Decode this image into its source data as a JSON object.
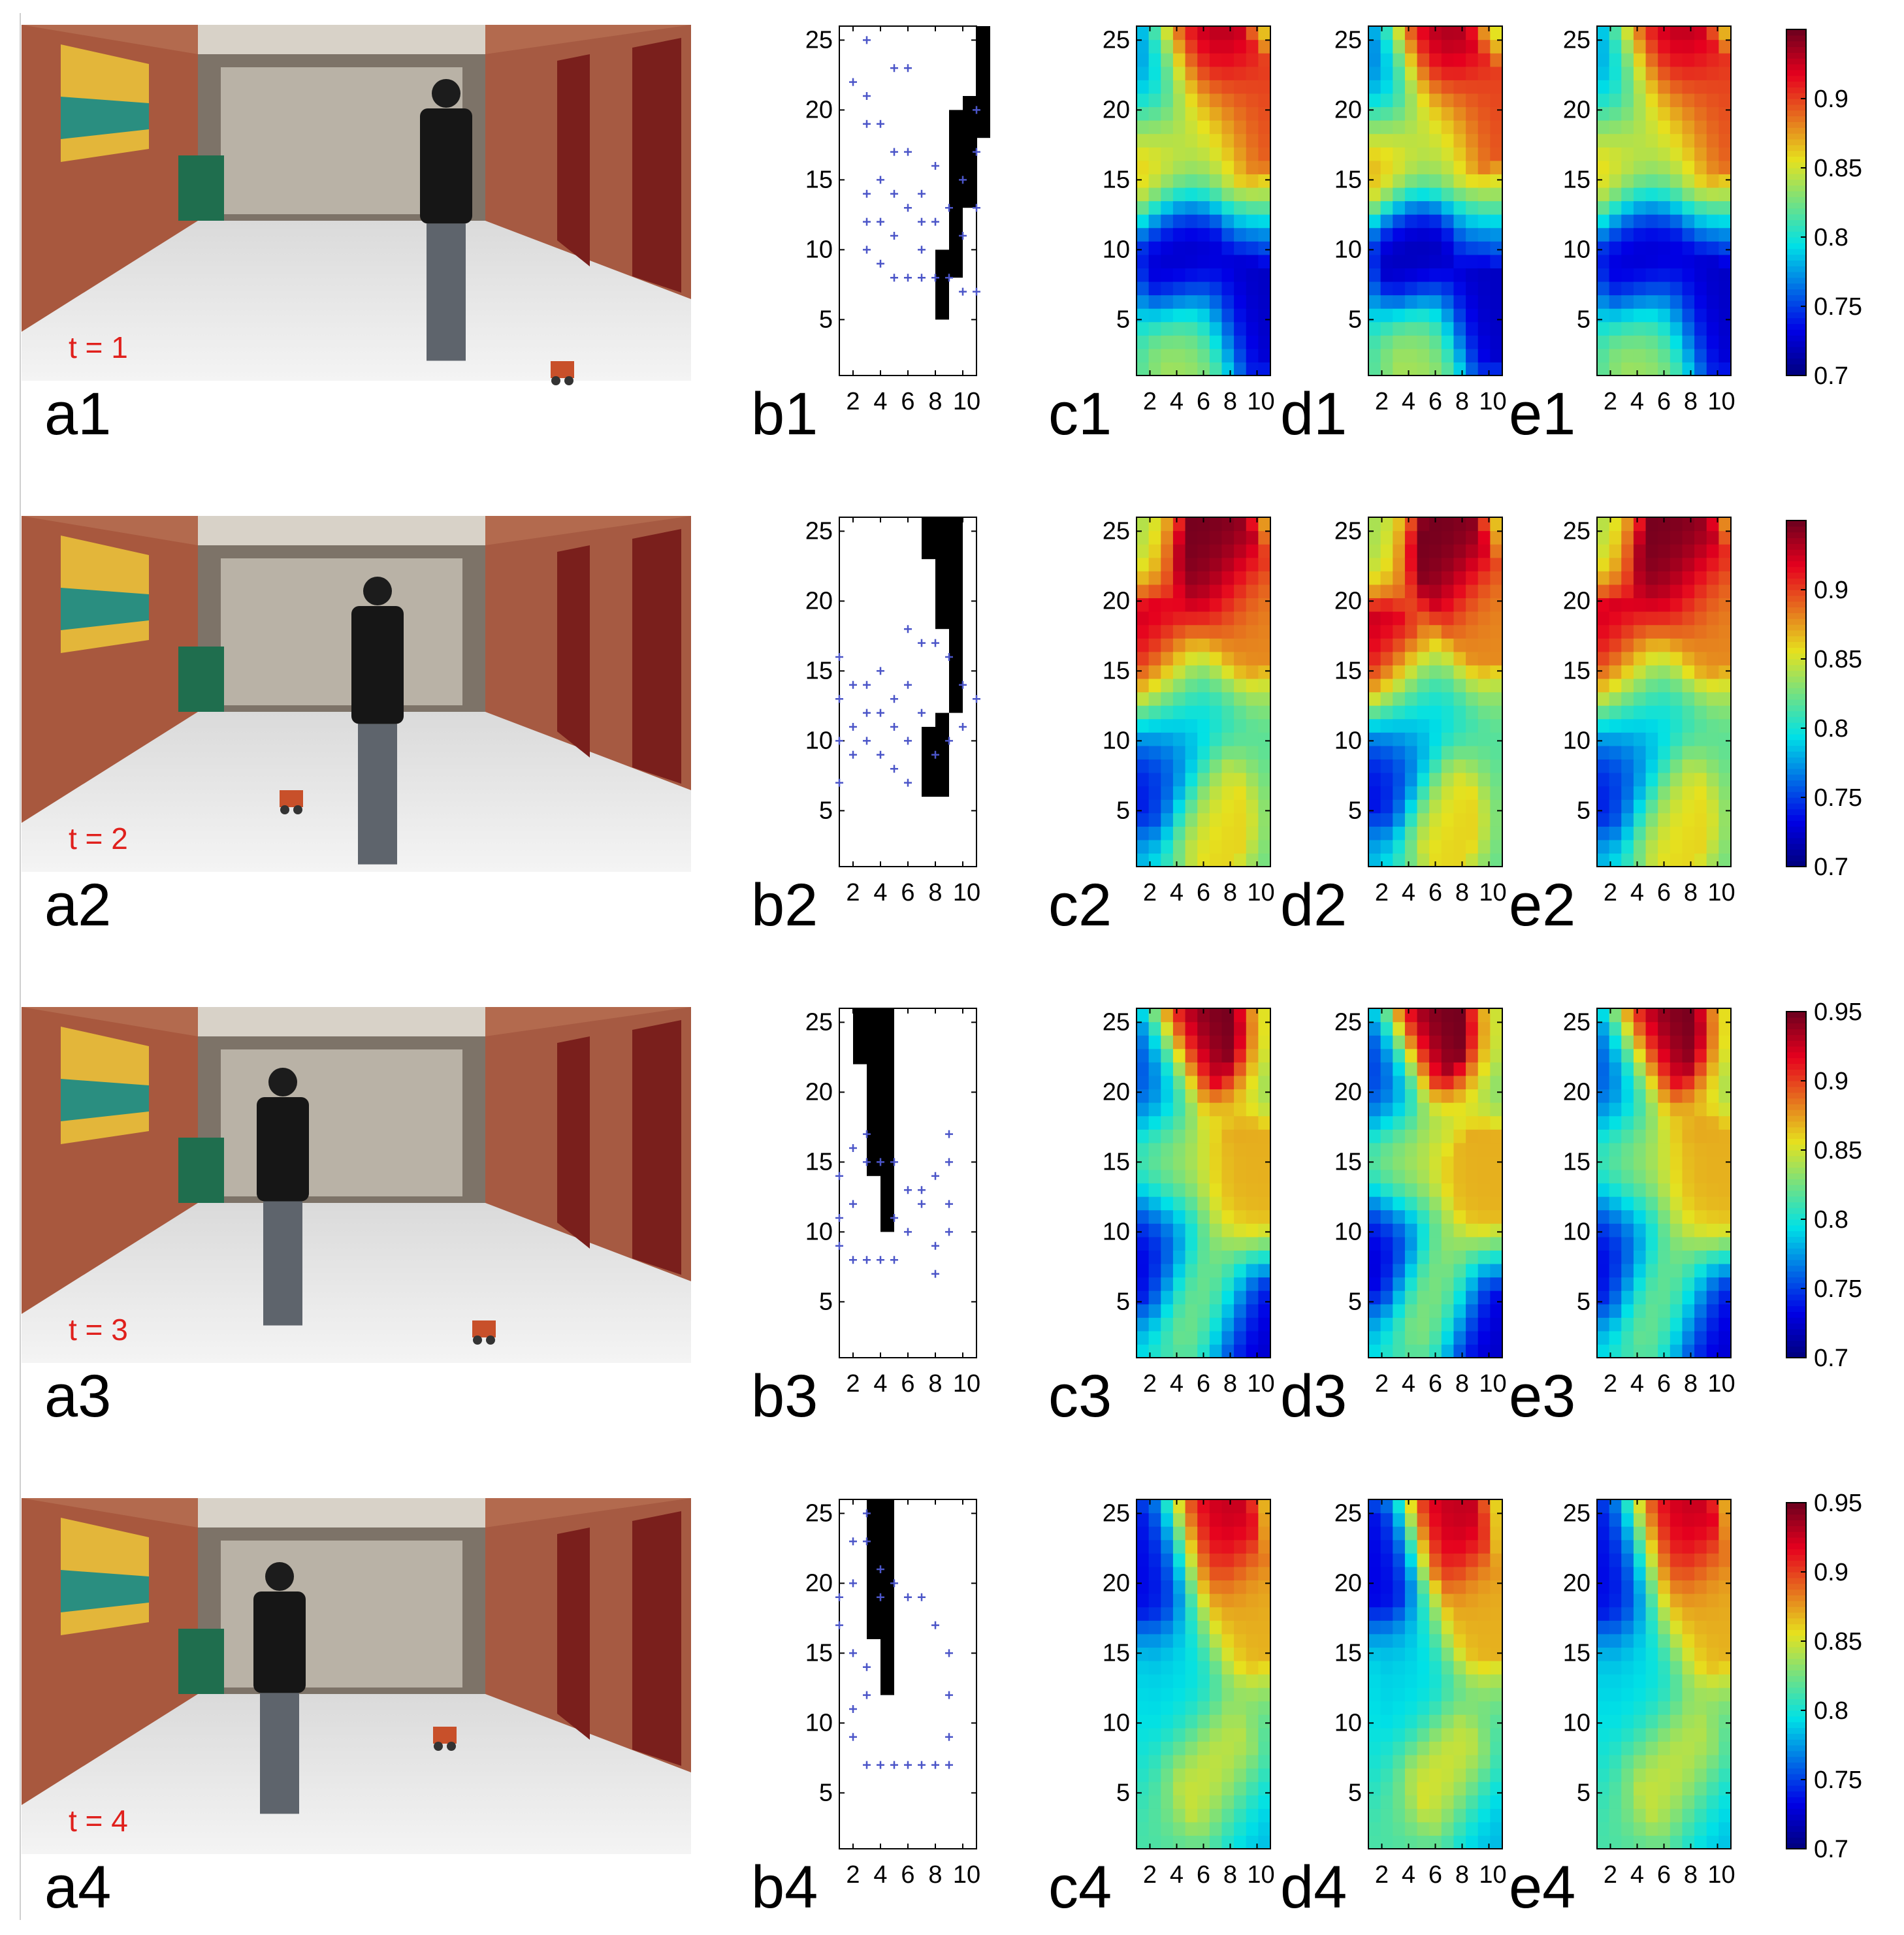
{
  "figure": {
    "rows": [
      {
        "row": 1,
        "photo_label": "a1",
        "time_label": "t = 1",
        "map_label": "b1",
        "heatmap_labels": [
          "c1",
          "d1",
          "e1"
        ],
        "colorbar_ticks": [
          "0.9",
          "0.85",
          "0.8",
          "0.75",
          "0.7"
        ]
      },
      {
        "row": 2,
        "photo_label": "a2",
        "time_label": "t = 2",
        "map_label": "b2",
        "heatmap_labels": [
          "c2",
          "d2",
          "e2"
        ],
        "colorbar_ticks": [
          "0.9",
          "0.85",
          "0.8",
          "0.75",
          "0.7"
        ]
      },
      {
        "row": 3,
        "photo_label": "a3",
        "time_label": "t = 3",
        "map_label": "b3",
        "heatmap_labels": [
          "c3",
          "d3",
          "e3"
        ],
        "colorbar_ticks": [
          "0.95",
          "0.9",
          "0.85",
          "0.8",
          "0.75",
          "0.7"
        ]
      },
      {
        "row": 4,
        "photo_label": "a4",
        "time_label": "t = 4",
        "map_label": "b4",
        "heatmap_labels": [
          "c4",
          "d4",
          "e4"
        ],
        "colorbar_ticks": [
          "0.95",
          "0.9",
          "0.85",
          "0.8",
          "0.75",
          "0.7"
        ]
      }
    ],
    "y_ticks": [
      "25",
      "20",
      "15",
      "10",
      "5"
    ],
    "x_ticks": [
      "2",
      "4",
      "6",
      "8",
      "10"
    ],
    "colors": {
      "label_text": "#000000",
      "time_text": "#e0201c",
      "points": "#4b55c8",
      "occupied": "#000000",
      "jet_low": "#2a2a8c",
      "jet_high": "#c0101a"
    },
    "icons": {
      "photo": "hallway-photo",
      "person": "person-silhouette",
      "robot": "robot-icon",
      "marker": "plus-marker"
    }
  },
  "chart_data": [
    {
      "type": "heatmap",
      "panel": "c1-e1",
      "xlim": [
        1,
        11
      ],
      "ylim": [
        1,
        26
      ],
      "colorbar": {
        "min": 0.7,
        "max": 0.95,
        "ticks": [
          0.7,
          0.75,
          0.8,
          0.85,
          0.9
        ]
      },
      "hotspots": [
        {
          "x": 6,
          "y": 25,
          "value": 0.94
        },
        {
          "x": 10,
          "y": 20,
          "value": 0.9
        },
        {
          "x": 1.5,
          "y": 17,
          "value": 0.89
        },
        {
          "x": 4,
          "y": 10,
          "value": 0.71
        },
        {
          "x": 10,
          "y": 5,
          "value": 0.72
        },
        {
          "x": 1.5,
          "y": 22,
          "value": 0.75
        },
        {
          "x": 5,
          "y": 2,
          "value": 0.84
        },
        {
          "x": 6,
          "y": 18,
          "value": 0.84
        }
      ]
    },
    {
      "type": "heatmap",
      "panel": "c2-e2",
      "xlim": [
        1,
        11
      ],
      "ylim": [
        1,
        26
      ],
      "colorbar": {
        "min": 0.7,
        "max": 0.95,
        "ticks": [
          0.7,
          0.75,
          0.8,
          0.85,
          0.9
        ]
      },
      "hotspots": [
        {
          "x": 7,
          "y": 24,
          "value": 0.95
        },
        {
          "x": 10,
          "y": 19,
          "value": 0.88
        },
        {
          "x": 1.5,
          "y": 16,
          "value": 0.93
        },
        {
          "x": 2,
          "y": 8,
          "value": 0.73
        },
        {
          "x": 7,
          "y": 4,
          "value": 0.86
        },
        {
          "x": 4,
          "y": 12,
          "value": 0.79
        }
      ]
    },
    {
      "type": "heatmap",
      "panel": "c3-e3",
      "xlim": [
        1,
        11
      ],
      "ylim": [
        1,
        26
      ],
      "colorbar": {
        "min": 0.7,
        "max": 0.95,
        "ticks": [
          0.7,
          0.75,
          0.8,
          0.85,
          0.9,
          0.95
        ]
      },
      "hotspots": [
        {
          "x": 6,
          "y": 25,
          "value": 0.95
        },
        {
          "x": 3,
          "y": 15,
          "value": 0.85
        },
        {
          "x": 10,
          "y": 14,
          "value": 0.87
        },
        {
          "x": 1.5,
          "y": 9,
          "value": 0.72
        },
        {
          "x": 10,
          "y": 2,
          "value": 0.72
        },
        {
          "x": 1.5,
          "y": 21,
          "value": 0.74
        },
        {
          "x": 6,
          "y": 5,
          "value": 0.84
        }
      ]
    },
    {
      "type": "heatmap",
      "panel": "c4-e4",
      "xlim": [
        1,
        11
      ],
      "ylim": [
        1,
        26
      ],
      "colorbar": {
        "min": 0.7,
        "max": 0.95,
        "ticks": [
          0.7,
          0.75,
          0.8,
          0.85,
          0.9,
          0.95
        ]
      },
      "hotspots": [
        {
          "x": 7,
          "y": 25,
          "value": 0.93
        },
        {
          "x": 10,
          "y": 18,
          "value": 0.87
        },
        {
          "x": 1.5,
          "y": 22,
          "value": 0.73
        },
        {
          "x": 7,
          "y": 6,
          "value": 0.86
        },
        {
          "x": 10,
          "y": 2,
          "value": 0.78
        },
        {
          "x": 4,
          "y": 12,
          "value": 0.79
        }
      ]
    },
    {
      "type": "scatter",
      "panel": "b1",
      "xlim": [
        1,
        11
      ],
      "ylim": [
        1,
        26
      ],
      "occupied": [
        [
          11,
          19,
          26
        ],
        [
          10,
          14,
          21
        ],
        [
          9,
          9,
          20
        ],
        [
          8,
          6,
          10
        ]
      ],
      "points": [
        [
          2,
          22
        ],
        [
          3,
          25
        ],
        [
          3,
          21
        ],
        [
          3,
          19
        ],
        [
          3,
          14
        ],
        [
          3,
          12
        ],
        [
          3,
          10
        ],
        [
          4,
          19
        ],
        [
          4,
          15
        ],
        [
          4,
          12
        ],
        [
          4,
          9
        ],
        [
          5,
          23
        ],
        [
          5,
          17
        ],
        [
          5,
          14
        ],
        [
          5,
          11
        ],
        [
          5,
          8
        ],
        [
          6,
          23
        ],
        [
          6,
          17
        ],
        [
          6,
          13
        ],
        [
          6,
          8
        ],
        [
          7,
          14
        ],
        [
          7,
          12
        ],
        [
          7,
          10
        ],
        [
          7,
          8
        ],
        [
          8,
          16
        ],
        [
          8,
          12
        ],
        [
          8,
          8
        ],
        [
          9,
          13
        ],
        [
          9,
          8
        ],
        [
          10,
          15
        ],
        [
          10,
          11
        ],
        [
          10,
          7
        ],
        [
          11,
          20
        ],
        [
          11,
          17
        ],
        [
          11,
          13
        ],
        [
          11,
          7
        ]
      ]
    },
    {
      "type": "scatter",
      "panel": "b2",
      "xlim": [
        1,
        11
      ],
      "ylim": [
        1,
        26
      ],
      "occupied": [
        [
          7,
          24,
          26
        ],
        [
          8,
          19,
          26
        ],
        [
          9,
          13,
          26
        ],
        [
          7,
          7,
          11
        ],
        [
          8,
          7,
          12
        ]
      ],
      "points": [
        [
          1,
          16
        ],
        [
          1,
          13
        ],
        [
          1,
          10
        ],
        [
          1,
          7
        ],
        [
          2,
          14
        ],
        [
          2,
          11
        ],
        [
          2,
          9
        ],
        [
          3,
          14
        ],
        [
          3,
          12
        ],
        [
          3,
          10
        ],
        [
          4,
          15
        ],
        [
          4,
          12
        ],
        [
          4,
          9
        ],
        [
          5,
          13
        ],
        [
          5,
          11
        ],
        [
          5,
          8
        ],
        [
          6,
          18
        ],
        [
          6,
          14
        ],
        [
          6,
          10
        ],
        [
          6,
          7
        ],
        [
          7,
          17
        ],
        [
          7,
          12
        ],
        [
          8,
          17
        ],
        [
          8,
          9
        ],
        [
          9,
          16
        ],
        [
          9,
          10
        ],
        [
          10,
          14
        ],
        [
          10,
          11
        ],
        [
          11,
          13
        ]
      ]
    },
    {
      "type": "scatter",
      "panel": "b3",
      "xlim": [
        1,
        11
      ],
      "ylim": [
        1,
        26
      ],
      "occupied": [
        [
          2,
          23,
          26
        ],
        [
          3,
          15,
          26
        ],
        [
          4,
          11,
          26
        ]
      ],
      "points": [
        [
          1,
          14
        ],
        [
          1,
          11
        ],
        [
          1,
          9
        ],
        [
          2,
          16
        ],
        [
          2,
          12
        ],
        [
          2,
          8
        ],
        [
          3,
          17
        ],
        [
          3,
          15
        ],
        [
          3,
          8
        ],
        [
          4,
          15
        ],
        [
          4,
          8
        ],
        [
          5,
          15
        ],
        [
          5,
          11
        ],
        [
          5,
          8
        ],
        [
          6,
          13
        ],
        [
          6,
          10
        ],
        [
          7,
          13
        ],
        [
          7,
          12
        ],
        [
          8,
          14
        ],
        [
          8,
          9
        ],
        [
          8,
          7
        ],
        [
          9,
          17
        ],
        [
          9,
          15
        ],
        [
          9,
          12
        ],
        [
          9,
          10
        ]
      ]
    },
    {
      "type": "scatter",
      "panel": "b4",
      "xlim": [
        1,
        11
      ],
      "ylim": [
        1,
        26
      ],
      "occupied": [
        [
          3,
          17,
          26
        ],
        [
          4,
          13,
          26
        ]
      ],
      "points": [
        [
          1,
          19
        ],
        [
          1,
          17
        ],
        [
          2,
          23
        ],
        [
          2,
          20
        ],
        [
          2,
          15
        ],
        [
          2,
          11
        ],
        [
          2,
          9
        ],
        [
          3,
          25
        ],
        [
          3,
          23
        ],
        [
          3,
          14
        ],
        [
          3,
          12
        ],
        [
          3,
          7
        ],
        [
          4,
          21
        ],
        [
          4,
          19
        ],
        [
          4,
          7
        ],
        [
          5,
          20
        ],
        [
          5,
          7
        ],
        [
          6,
          19
        ],
        [
          6,
          7
        ],
        [
          7,
          19
        ],
        [
          7,
          7
        ],
        [
          8,
          17
        ],
        [
          8,
          7
        ],
        [
          9,
          15
        ],
        [
          9,
          12
        ],
        [
          9,
          9
        ],
        [
          9,
          7
        ]
      ]
    }
  ]
}
